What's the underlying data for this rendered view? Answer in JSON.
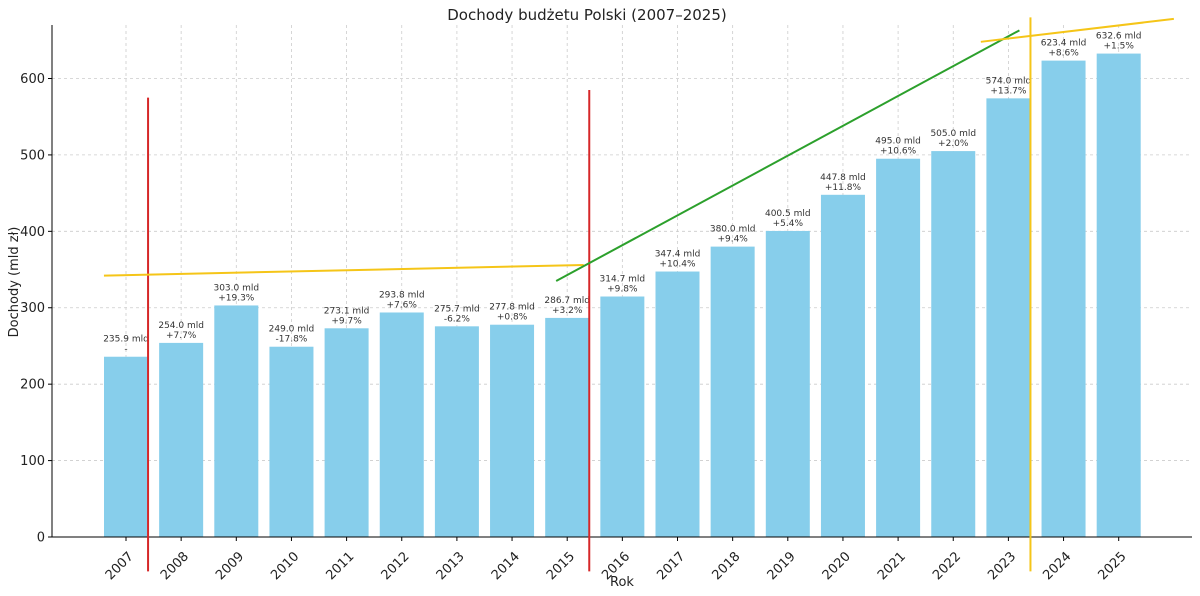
{
  "chart_data": {
    "type": "bar",
    "title": "Dochody budżetu Polski (2007–2025)",
    "xlabel": "Rok",
    "ylabel": "Dochody (mld zł)",
    "ylim": [
      0,
      670
    ],
    "yticks": [
      0,
      100,
      200,
      300,
      400,
      500,
      600
    ],
    "grid": true,
    "bar_color": "#87ceeb",
    "categories": [
      "2007",
      "2008",
      "2009",
      "2010",
      "2011",
      "2012",
      "2013",
      "2014",
      "2015",
      "2016",
      "2017",
      "2018",
      "2019",
      "2020",
      "2021",
      "2022",
      "2023",
      "2024",
      "2025"
    ],
    "values": [
      235.9,
      254.0,
      303.0,
      249.0,
      273.1,
      293.8,
      275.7,
      277.8,
      286.7,
      314.7,
      347.4,
      380.0,
      400.5,
      447.8,
      495.0,
      505.0,
      574.0,
      623.4,
      632.6
    ],
    "value_labels": [
      "235.9 mld",
      "254.0 mld",
      "303.0 mld",
      "249.0 mld",
      "273.1 mld",
      "293.8 mld",
      "275.7 mld",
      "277.8 mld",
      "286.7 mld",
      "314.7 mld",
      "347.4 mld",
      "380.0 mld",
      "400.5 mld",
      "447.8 mld",
      "495.0 mld",
      "505.0 mld",
      "574.0 mld",
      "623.4 mld",
      "632.6 mld"
    ],
    "change_labels": [
      "-",
      "+7.7%",
      "+19.3%",
      "-17.8%",
      "+9.7%",
      "+7.6%",
      "-6.2%",
      "+0.8%",
      "+3.2%",
      "+9.8%",
      "+10.4%",
      "+9.4%",
      "+5.4%",
      "+11.8%",
      "+10.6%",
      "+2.0%",
      "+13.7%",
      "+8.6%",
      "+1.5%"
    ],
    "annotations": {
      "vertical_lines": [
        {
          "color": "#d62728",
          "after_category": "2007",
          "y_from": -45,
          "y_to": 575
        },
        {
          "color": "#d62728",
          "after_category": "2015",
          "y_from": -45,
          "y_to": 585
        },
        {
          "color": "#f5c518",
          "after_category": "2023",
          "y_from": -45,
          "y_to": 680
        }
      ],
      "trend_lines": [
        {
          "color": "#f5c518",
          "from": {
            "x": 2006.6,
            "y": 342
          },
          "to": {
            "x": 2015.3,
            "y": 356
          }
        },
        {
          "color": "#2ca02c",
          "from": {
            "x": 2014.8,
            "y": 335
          },
          "to": {
            "x": 2023.2,
            "y": 663
          }
        },
        {
          "color": "#f5c518",
          "from": {
            "x": 2022.5,
            "y": 648
          },
          "to": {
            "x": 2026.0,
            "y": 678
          }
        }
      ]
    }
  }
}
